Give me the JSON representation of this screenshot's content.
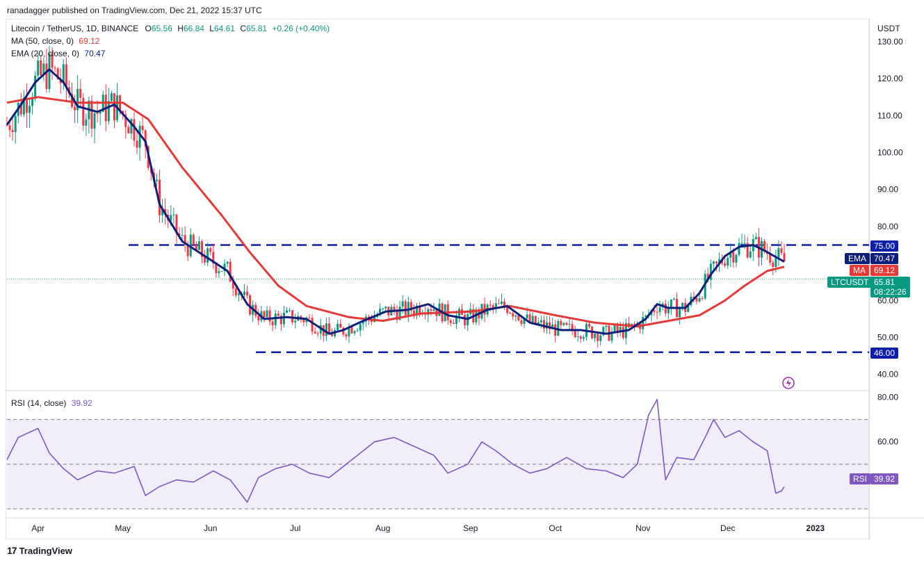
{
  "publisher": "ranadagger published on TradingView.com, Dec 21, 2022 15:37 UTC",
  "footer_brand": "TradingView",
  "colors": {
    "candle_up": "#089981",
    "candle_down": "#f23645",
    "ema": "#0d1f7a",
    "ma": "#e53935",
    "rsi": "#7e57c2",
    "levels": "#0d1faa",
    "rsi_band": "#ede7f6"
  },
  "legend": {
    "symbol": "Litecoin / TetherUS, 1D, BINANCE",
    "o_label": "O",
    "o": "65.56",
    "h_label": "H",
    "h": "66.84",
    "l_label": "L",
    "l": "64.61",
    "c_label": "C",
    "c": "65.81",
    "change": "+0.26 (+0.40%)",
    "ma_label": "MA (50, close, 0)",
    "ma_value": "69.12",
    "ema_label": "EMA (20, close, 0)",
    "ema_value": "70.47",
    "rsi_label": "RSI (14, close)",
    "rsi_value": "39.92"
  },
  "axis": {
    "currency": "USDT",
    "price_ticks": [
      "130.00",
      "120.00",
      "110.00",
      "100.00",
      "90.00",
      "80.00",
      "60.00",
      "50.00",
      "40.00"
    ],
    "rsi_ticks": [
      "80.00",
      "60.00"
    ],
    "months": [
      "Apr",
      "May",
      "Jun",
      "Jul",
      "Aug",
      "Sep",
      "Oct",
      "Nov",
      "Dec",
      "2023"
    ]
  },
  "price_tags": {
    "level_high": "75.00",
    "ema_tag": "EMA",
    "ema_value": "70.47",
    "ma_tag": "MA",
    "ma_value": "69.12",
    "symbol_tag": "LTCUSDT",
    "last_price": "65.81",
    "countdown": "08:22:26",
    "level_low": "46.00",
    "rsi_tag": "RSI",
    "rsi_value": "39.92"
  },
  "chart_data": [
    {
      "type": "candlestick",
      "title": "Litecoin / TetherUS, 1D, BINANCE",
      "price_range": [
        36,
        136
      ],
      "horizontal_levels": [
        75.0,
        46.0
      ],
      "x_range": [
        "2022-03-21",
        "2023-01-20"
      ],
      "series": [
        {
          "name": "EMA (20, close, 0)",
          "points": [
            [
              "2022-03-21",
              107.5
            ],
            [
              "2022-03-26",
              113
            ],
            [
              "2022-03-31",
              119
            ],
            [
              "2022-04-05",
              122.5
            ],
            [
              "2022-04-10",
              119
            ],
            [
              "2022-04-15",
              112.5
            ],
            [
              "2022-04-22",
              111
            ],
            [
              "2022-04-28",
              113
            ],
            [
              "2022-05-05",
              107
            ],
            [
              "2022-05-09",
              103
            ],
            [
              "2022-05-14",
              86
            ],
            [
              "2022-05-22",
              76
            ],
            [
              "2022-05-31",
              71.5
            ],
            [
              "2022-06-07",
              68
            ],
            [
              "2022-06-14",
              59
            ],
            [
              "2022-06-20",
              55
            ],
            [
              "2022-06-28",
              55.5
            ],
            [
              "2022-07-05",
              55
            ],
            [
              "2022-07-13",
              51
            ],
            [
              "2022-07-18",
              52
            ],
            [
              "2022-07-25",
              54.5
            ],
            [
              "2022-08-02",
              57
            ],
            [
              "2022-08-10",
              57.5
            ],
            [
              "2022-08-17",
              59
            ],
            [
              "2022-08-24",
              56
            ],
            [
              "2022-08-31",
              55
            ],
            [
              "2022-09-07",
              57.5
            ],
            [
              "2022-09-14",
              58.5
            ],
            [
              "2022-09-22",
              54
            ],
            [
              "2022-10-03",
              52
            ],
            [
              "2022-10-10",
              52
            ],
            [
              "2022-10-19",
              51
            ],
            [
              "2022-10-27",
              52
            ],
            [
              "2022-11-02",
              55
            ],
            [
              "2022-11-06",
              59
            ],
            [
              "2022-11-10",
              58
            ],
            [
              "2022-11-16",
              58
            ],
            [
              "2022-11-21",
              62
            ],
            [
              "2022-11-25",
              67
            ],
            [
              "2022-11-30",
              72
            ],
            [
              "2022-12-05",
              74.5
            ],
            [
              "2022-12-10",
              75
            ],
            [
              "2022-12-14",
              73.5
            ],
            [
              "2022-12-21",
              70.47
            ]
          ]
        },
        {
          "name": "MA (50, close, 0)",
          "points": [
            [
              "2022-03-21",
              113.5
            ],
            [
              "2022-04-01",
              115
            ],
            [
              "2022-04-15",
              113.5
            ],
            [
              "2022-05-01",
              113.5
            ],
            [
              "2022-05-10",
              109
            ],
            [
              "2022-05-22",
              96
            ],
            [
              "2022-06-05",
              83
            ],
            [
              "2022-06-15",
              73
            ],
            [
              "2022-06-25",
              64
            ],
            [
              "2022-07-05",
              58.5
            ],
            [
              "2022-07-20",
              55.5
            ],
            [
              "2022-08-01",
              54.5
            ],
            [
              "2022-08-15",
              56.5
            ],
            [
              "2022-09-01",
              57
            ],
            [
              "2022-09-15",
              58.5
            ],
            [
              "2022-10-01",
              56
            ],
            [
              "2022-10-15",
              54
            ],
            [
              "2022-10-30",
              53
            ],
            [
              "2022-11-10",
              54.5
            ],
            [
              "2022-11-21",
              56
            ],
            [
              "2022-11-30",
              60
            ],
            [
              "2022-12-07",
              64
            ],
            [
              "2022-12-15",
              68
            ],
            [
              "2022-12-21",
              69.12
            ]
          ]
        },
        {
          "name": "RSI (14, close)",
          "points": [
            [
              "2022-03-21",
              52
            ],
            [
              "2022-03-25",
              62
            ],
            [
              "2022-04-01",
              66
            ],
            [
              "2022-04-05",
              55
            ],
            [
              "2022-04-10",
              48
            ],
            [
              "2022-04-15",
              43
            ],
            [
              "2022-04-22",
              47
            ],
            [
              "2022-04-28",
              46
            ],
            [
              "2022-05-05",
              49
            ],
            [
              "2022-05-09",
              36
            ],
            [
              "2022-05-14",
              40
            ],
            [
              "2022-05-20",
              43
            ],
            [
              "2022-05-26",
              42
            ],
            [
              "2022-06-02",
              47
            ],
            [
              "2022-06-08",
              43
            ],
            [
              "2022-06-14",
              33
            ],
            [
              "2022-06-18",
              44
            ],
            [
              "2022-06-24",
              48
            ],
            [
              "2022-06-30",
              50
            ],
            [
              "2022-07-06",
              46
            ],
            [
              "2022-07-13",
              44
            ],
            [
              "2022-07-18",
              49
            ],
            [
              "2022-07-25",
              56
            ],
            [
              "2022-07-29",
              60
            ],
            [
              "2022-08-05",
              62
            ],
            [
              "2022-08-12",
              58
            ],
            [
              "2022-08-19",
              54
            ],
            [
              "2022-08-24",
              46
            ],
            [
              "2022-08-31",
              50
            ],
            [
              "2022-09-05",
              60
            ],
            [
              "2022-09-10",
              56
            ],
            [
              "2022-09-16",
              50
            ],
            [
              "2022-09-22",
              46
            ],
            [
              "2022-09-28",
              48
            ],
            [
              "2022-10-05",
              53
            ],
            [
              "2022-10-12",
              48
            ],
            [
              "2022-10-19",
              47
            ],
            [
              "2022-10-25",
              44
            ],
            [
              "2022-10-30",
              50
            ],
            [
              "2022-11-03",
              72
            ],
            [
              "2022-11-06",
              79
            ],
            [
              "2022-11-09",
              43
            ],
            [
              "2022-11-13",
              53
            ],
            [
              "2022-11-19",
              52
            ],
            [
              "2022-11-23",
              62
            ],
            [
              "2022-11-26",
              70
            ],
            [
              "2022-11-30",
              62
            ],
            [
              "2022-12-05",
              65
            ],
            [
              "2022-12-10",
              60
            ],
            [
              "2022-12-15",
              56
            ],
            [
              "2022-12-18",
              37
            ],
            [
              "2022-12-20",
              38
            ],
            [
              "2022-12-21",
              39.92
            ]
          ]
        }
      ],
      "candles_visible_ohlc_last": {
        "date": "2022-12-21",
        "o": 65.56,
        "h": 66.84,
        "l": 64.61,
        "c": 65.81
      }
    },
    {
      "type": "line",
      "title": "RSI (14, close)",
      "y_range": [
        26,
        82
      ],
      "band": [
        30,
        70
      ],
      "midline": 50
    }
  ]
}
